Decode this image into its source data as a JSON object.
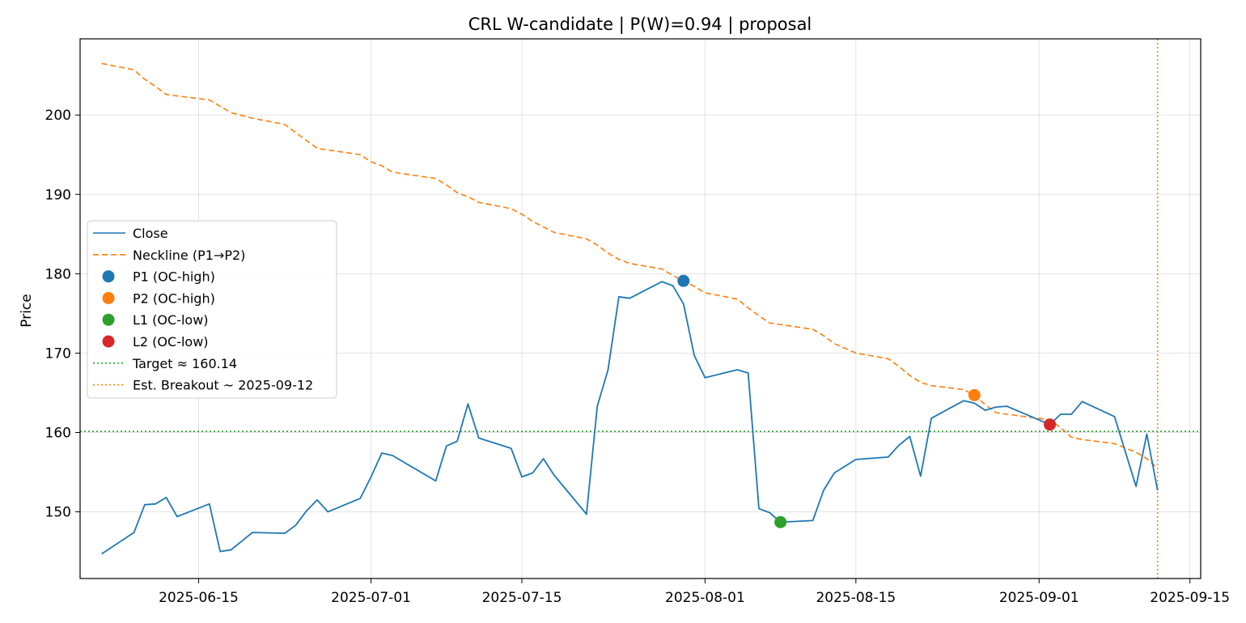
{
  "chart_data": {
    "type": "line",
    "title": "CRL W-candidate | P(W)=0.94 | proposal",
    "xlabel": "",
    "ylabel": "Price",
    "x_type": "date",
    "xlim": [
      "2025-06-04",
      "2025-09-16"
    ],
    "ylim": [
      141.6,
      209.6
    ],
    "x_ticks": [
      "2025-06-15",
      "2025-07-01",
      "2025-07-15",
      "2025-08-01",
      "2025-08-15",
      "2025-09-01",
      "2025-09-15"
    ],
    "y_ticks": [
      150,
      160,
      170,
      180,
      190,
      200
    ],
    "grid": true,
    "legend_position": "center-left",
    "series": [
      {
        "name": "Close",
        "style": "solid",
        "color": "#1f77b4",
        "points": [
          [
            "2025-06-06",
            144.7
          ],
          [
            "2025-06-09",
            147.4
          ],
          [
            "2025-06-10",
            150.9
          ],
          [
            "2025-06-11",
            151.0
          ],
          [
            "2025-06-12",
            151.8
          ],
          [
            "2025-06-13",
            149.4
          ],
          [
            "2025-06-16",
            151.0
          ],
          [
            "2025-06-17",
            145.0
          ],
          [
            "2025-06-18",
            145.2
          ],
          [
            "2025-06-20",
            147.4
          ],
          [
            "2025-06-23",
            147.3
          ],
          [
            "2025-06-24",
            148.3
          ],
          [
            "2025-06-25",
            150.1
          ],
          [
            "2025-06-26",
            151.5
          ],
          [
            "2025-06-27",
            150.0
          ],
          [
            "2025-06-30",
            151.7
          ],
          [
            "2025-07-01",
            154.4
          ],
          [
            "2025-07-02",
            157.4
          ],
          [
            "2025-07-03",
            157.1
          ],
          [
            "2025-07-07",
            153.9
          ],
          [
            "2025-07-08",
            158.3
          ],
          [
            "2025-07-09",
            158.9
          ],
          [
            "2025-07-10",
            163.6
          ],
          [
            "2025-07-11",
            159.3
          ],
          [
            "2025-07-14",
            158.0
          ],
          [
            "2025-07-15",
            154.4
          ],
          [
            "2025-07-16",
            154.9
          ],
          [
            "2025-07-17",
            156.7
          ],
          [
            "2025-07-18",
            154.6
          ],
          [
            "2025-07-21",
            149.7
          ],
          [
            "2025-07-22",
            163.3
          ],
          [
            "2025-07-23",
            167.9
          ],
          [
            "2025-07-24",
            177.1
          ],
          [
            "2025-07-25",
            176.9
          ],
          [
            "2025-07-28",
            179.0
          ],
          [
            "2025-07-29",
            178.5
          ],
          [
            "2025-07-30",
            176.2
          ],
          [
            "2025-07-31",
            169.7
          ],
          [
            "2025-08-01",
            166.9
          ],
          [
            "2025-08-04",
            167.9
          ],
          [
            "2025-08-05",
            167.5
          ],
          [
            "2025-08-06",
            150.4
          ],
          [
            "2025-08-07",
            149.9
          ],
          [
            "2025-08-08",
            148.7
          ],
          [
            "2025-08-11",
            148.9
          ],
          [
            "2025-08-12",
            152.7
          ],
          [
            "2025-08-13",
            154.9
          ],
          [
            "2025-08-15",
            156.6
          ],
          [
            "2025-08-18",
            156.9
          ],
          [
            "2025-08-19",
            158.4
          ],
          [
            "2025-08-20",
            159.5
          ],
          [
            "2025-08-21",
            154.5
          ],
          [
            "2025-08-22",
            161.8
          ],
          [
            "2025-08-25",
            164.0
          ],
          [
            "2025-08-26",
            163.7
          ],
          [
            "2025-08-27",
            162.8
          ],
          [
            "2025-08-28",
            163.2
          ],
          [
            "2025-08-29",
            163.3
          ],
          [
            "2025-09-02",
            161.0
          ],
          [
            "2025-09-03",
            162.3
          ],
          [
            "2025-09-04",
            162.3
          ],
          [
            "2025-09-05",
            163.9
          ],
          [
            "2025-09-08",
            162.0
          ],
          [
            "2025-09-10",
            153.2
          ],
          [
            "2025-09-11",
            159.8
          ],
          [
            "2025-09-12",
            152.7
          ]
        ]
      },
      {
        "name": "Neckline (P1→P2)",
        "style": "dashed",
        "color": "#ff7f0e",
        "points": [
          [
            "2025-06-06",
            206.5
          ],
          [
            "2025-06-09",
            205.7
          ],
          [
            "2025-06-10",
            204.5
          ],
          [
            "2025-06-11",
            203.6
          ],
          [
            "2025-06-12",
            202.6
          ],
          [
            "2025-06-13",
            202.4
          ],
          [
            "2025-06-16",
            201.9
          ],
          [
            "2025-06-17",
            201.1
          ],
          [
            "2025-06-18",
            200.3
          ],
          [
            "2025-06-20",
            199.6
          ],
          [
            "2025-06-23",
            198.8
          ],
          [
            "2025-06-24",
            197.8
          ],
          [
            "2025-06-25",
            196.8
          ],
          [
            "2025-06-26",
            195.8
          ],
          [
            "2025-06-27",
            195.6
          ],
          [
            "2025-06-30",
            195.0
          ],
          [
            "2025-07-01",
            194.1
          ],
          [
            "2025-07-02",
            193.6
          ],
          [
            "2025-07-03",
            192.8
          ],
          [
            "2025-07-07",
            192.0
          ],
          [
            "2025-07-08",
            191.2
          ],
          [
            "2025-07-09",
            190.2
          ],
          [
            "2025-07-10",
            189.7
          ],
          [
            "2025-07-11",
            189.0
          ],
          [
            "2025-07-14",
            188.2
          ],
          [
            "2025-07-15",
            187.5
          ],
          [
            "2025-07-16",
            186.6
          ],
          [
            "2025-07-17",
            185.9
          ],
          [
            "2025-07-18",
            185.2
          ],
          [
            "2025-07-21",
            184.4
          ],
          [
            "2025-07-22",
            183.6
          ],
          [
            "2025-07-23",
            182.6
          ],
          [
            "2025-07-24",
            181.8
          ],
          [
            "2025-07-25",
            181.3
          ],
          [
            "2025-07-28",
            180.6
          ],
          [
            "2025-07-29",
            179.8
          ],
          [
            "2025-07-30",
            179.1
          ],
          [
            "2025-07-31",
            178.4
          ],
          [
            "2025-08-01",
            177.6
          ],
          [
            "2025-08-04",
            176.8
          ],
          [
            "2025-08-05",
            175.7
          ],
          [
            "2025-08-06",
            174.7
          ],
          [
            "2025-08-07",
            173.8
          ],
          [
            "2025-08-08",
            173.6
          ],
          [
            "2025-08-11",
            173.0
          ],
          [
            "2025-08-12",
            172.2
          ],
          [
            "2025-08-13",
            171.2
          ],
          [
            "2025-08-15",
            170.0
          ],
          [
            "2025-08-18",
            169.3
          ],
          [
            "2025-08-19",
            168.3
          ],
          [
            "2025-08-20",
            167.2
          ],
          [
            "2025-08-21",
            166.3
          ],
          [
            "2025-08-22",
            165.9
          ],
          [
            "2025-08-25",
            165.4
          ],
          [
            "2025-08-26",
            164.7
          ],
          [
            "2025-08-27",
            163.5
          ],
          [
            "2025-08-28",
            162.5
          ],
          [
            "2025-08-29",
            162.3
          ],
          [
            "2025-09-02",
            161.6
          ],
          [
            "2025-09-03",
            160.6
          ],
          [
            "2025-09-04",
            159.4
          ],
          [
            "2025-09-05",
            159.1
          ],
          [
            "2025-09-08",
            158.6
          ],
          [
            "2025-09-10",
            157.5
          ],
          [
            "2025-09-11",
            156.7
          ],
          [
            "2025-09-12",
            155.5
          ]
        ]
      }
    ],
    "markers": [
      {
        "name": "P1 (OC-high)",
        "x": "2025-07-30",
        "y": 179.1,
        "color": "#1f77b4"
      },
      {
        "name": "P2 (OC-high)",
        "x": "2025-08-26",
        "y": 164.7,
        "color": "#ff7f0e"
      },
      {
        "name": "L1 (OC-low)",
        "x": "2025-08-08",
        "y": 148.7,
        "color": "#2ca02c"
      },
      {
        "name": "L2 (OC-low)",
        "x": "2025-09-02",
        "y": 161.0,
        "color": "#d62728"
      }
    ],
    "reference_lines": [
      {
        "name": "Target ≈ 160.14",
        "orientation": "horizontal",
        "value": 160.14,
        "style": "dotted",
        "color": "#2ca02c"
      },
      {
        "name": "Est. Breakout ~ 2025-09-12",
        "orientation": "vertical",
        "value": "2025-09-12",
        "style": "dotted",
        "color": "#ff7f0e"
      }
    ]
  }
}
